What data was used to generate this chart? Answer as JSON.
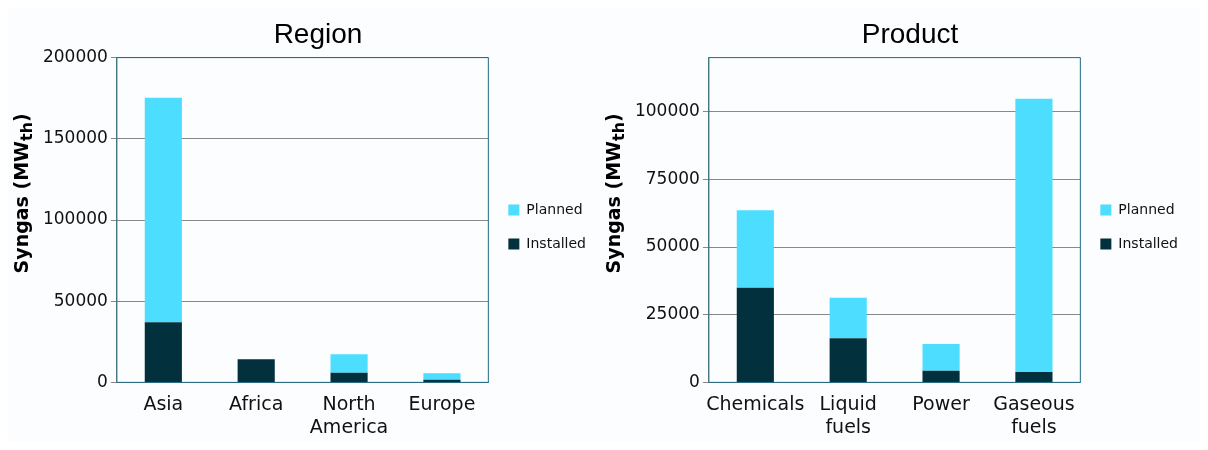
{
  "chart_data": [
    {
      "type": "bar",
      "title": "Region",
      "ylabel": "Syngas (MW$_{th}$)",
      "categories": [
        "Asia",
        "Africa",
        "North America",
        "Europe"
      ],
      "stacked": true,
      "series": [
        {
          "name": "Installed",
          "color": "#02303c",
          "values": [
            37000,
            14300,
            6000,
            1600
          ]
        },
        {
          "name": "Planned",
          "color": "#4dddff",
          "values": [
            138300,
            0,
            11400,
            4000
          ]
        }
      ],
      "ylim": [
        0,
        200000
      ],
      "yticks": [
        0,
        50000,
        100000,
        150000,
        200000
      ],
      "grid": "y",
      "legend": "right"
    },
    {
      "type": "bar",
      "title": "Product",
      "ylabel": "Syngas (MW$_{th}$)",
      "categories": [
        "Chemicals",
        "Liquid fuels",
        "Power",
        "Gaseous fuels"
      ],
      "stacked": true,
      "series": [
        {
          "name": "Installed",
          "color": "#02303c",
          "values": [
            35000,
            16300,
            4300,
            3800
          ]
        },
        {
          "name": "Planned",
          "color": "#4dddff",
          "values": [
            28600,
            15000,
            9900,
            101000
          ]
        }
      ],
      "ylim": [
        0,
        120000
      ],
      "yticks": [
        0,
        25000,
        50000,
        75000,
        100000
      ],
      "grid": "y",
      "legend": "right"
    }
  ]
}
